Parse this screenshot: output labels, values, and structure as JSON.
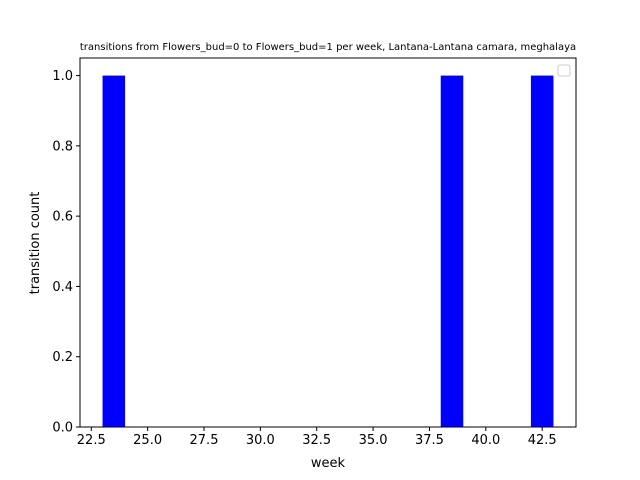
{
  "chart_data": {
    "type": "bar",
    "title": "transitions from Flowers_bud=0 to Flowers_bud=1 per week, Lantana-Lantana camara, meghalaya",
    "xlabel": "week",
    "ylabel": "transition count",
    "xlim": [
      22.0,
      44.0
    ],
    "ylim": [
      0.0,
      1.05
    ],
    "x_ticks": [
      "22.5",
      "25.0",
      "27.5",
      "30.0",
      "32.5",
      "35.0",
      "37.5",
      "40.0",
      "42.5"
    ],
    "y_ticks": [
      "0.0",
      "0.2",
      "0.4",
      "0.6",
      "0.8",
      "1.0"
    ],
    "bars": [
      {
        "x_start": 23.0,
        "x_end": 24.0,
        "value": 1
      },
      {
        "x_start": 38.0,
        "x_end": 39.0,
        "value": 1
      },
      {
        "x_start": 42.0,
        "x_end": 43.0,
        "value": 1
      }
    ],
    "bar_color": "#0000ff",
    "grid": false,
    "legend": {
      "position": "top-right",
      "entries": []
    }
  }
}
